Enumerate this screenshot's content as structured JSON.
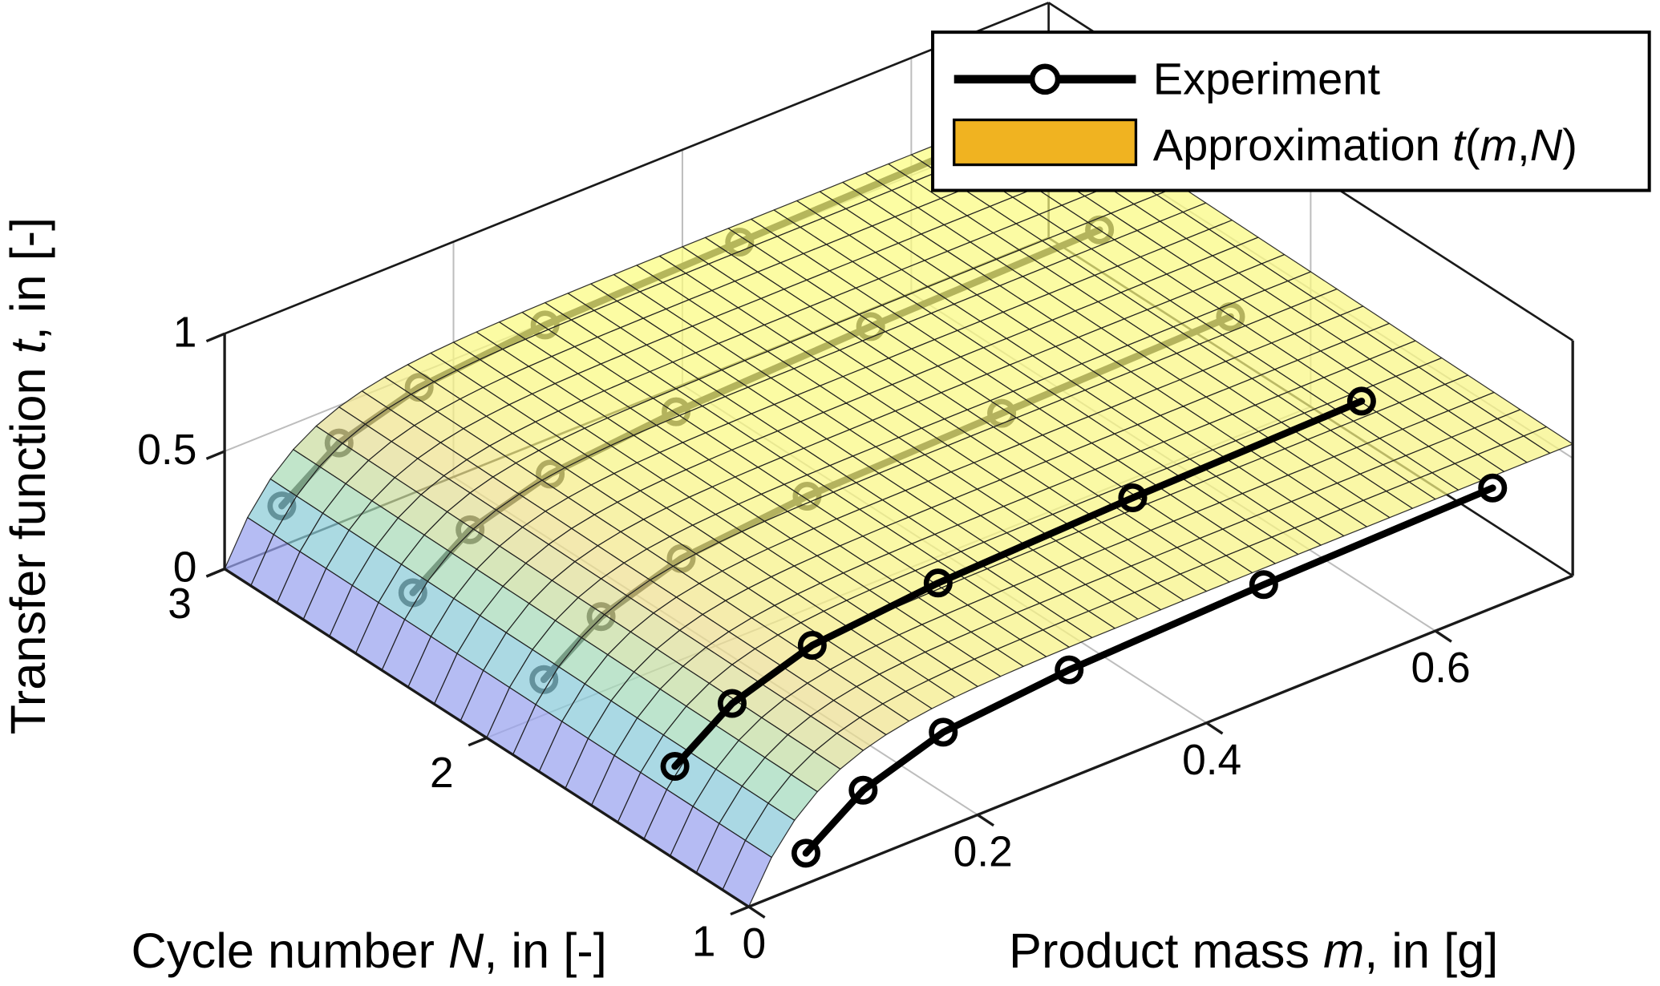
{
  "figure": {
    "background": "#ffffff"
  },
  "chart_data": {
    "type": "surface3d",
    "title": "",
    "axes": {
      "x": {
        "label": "Product mass m, in [g]",
        "label_runs": [
          {
            "text": "Product mass "
          },
          {
            "text": "m",
            "italic": true
          },
          {
            "text": ", in [g]"
          }
        ],
        "ticks": [
          0,
          0.2,
          0.4,
          0.6
        ],
        "tick_labels": [
          "0",
          "0.2",
          "0.4",
          "0.6"
        ],
        "range": [
          0,
          0.72
        ]
      },
      "y": {
        "label": "Cycle number N, in [-]",
        "label_runs": [
          {
            "text": "Cycle number "
          },
          {
            "text": "N",
            "italic": true
          },
          {
            "text": ", in [-]"
          }
        ],
        "ticks": [
          1,
          2,
          3
        ],
        "tick_labels": [
          "1",
          "2",
          "3"
        ],
        "range": [
          1,
          3
        ]
      },
      "z": {
        "label": "Transfer function t, in [-]",
        "label_runs": [
          {
            "text": "Transfer function "
          },
          {
            "text": "t",
            "italic": true
          },
          {
            "text": ", in [-]"
          }
        ],
        "ticks": [
          0,
          0.5,
          1
        ],
        "tick_labels": [
          "0",
          "0.5",
          "1"
        ],
        "range": [
          0,
          1
        ]
      },
      "grid": true
    },
    "legend": {
      "position": "top-right",
      "entries": [
        {
          "label": "Experiment",
          "type": "line-with-circle-marker",
          "color": "#000000"
        },
        {
          "label": "Approximation t(m,N)",
          "label_runs": [
            {
              "text": "Approximation "
            },
            {
              "text": "t",
              "italic": true
            },
            {
              "text": "("
            },
            {
              "text": "m",
              "italic": true
            },
            {
              "text": ","
            },
            {
              "text": "N",
              "italic": true
            },
            {
              "text": ")"
            }
          ],
          "type": "filled-patch",
          "swatch_color": "#F0B321"
        }
      ]
    },
    "surface": {
      "name": "Approximation t(m,N)",
      "description": "Fitted surface: steep rise from t=0 at m=0 to a plateau near t=0.5-0.55, nearly independent of N",
      "t_max": 0.56,
      "m_scale": 0.055,
      "n_slope": 0.025,
      "t_color_max": 0.59,
      "grid_m": 36,
      "grid_n": 20,
      "face_alpha": 0.72,
      "mesh_color": "#1c1c1c",
      "white_mix": 0.45,
      "colormap_stops": [
        [
          62,
          38,
          168
        ],
        [
          70,
          87,
          227
        ],
        [
          32,
          140,
          205
        ],
        [
          53,
          183,
          161
        ],
        [
          134,
          193,
          91
        ],
        [
          223,
          195,
          55
        ],
        [
          249,
          251,
          20
        ]
      ]
    },
    "series": [
      {
        "name": "Experiment N=1",
        "N": 1,
        "m": [
          0.05,
          0.1,
          0.17,
          0.28,
          0.45,
          0.65
        ],
        "t": [
          0.13,
          0.3,
          0.41,
          0.46,
          0.49,
          0.51
        ]
      },
      {
        "name": "Experiment N=1.5",
        "N": 1.5,
        "m": [
          0.05,
          0.1,
          0.17,
          0.28,
          0.45,
          0.65
        ],
        "t": [
          0.14,
          0.31,
          0.42,
          0.47,
          0.5,
          0.52
        ]
      },
      {
        "name": "Experiment N=2",
        "N": 2,
        "m": [
          0.05,
          0.1,
          0.17,
          0.28,
          0.45,
          0.65
        ],
        "t": [
          0.15,
          0.32,
          0.43,
          0.48,
          0.5,
          0.52
        ]
      },
      {
        "name": "Experiment N=2.5",
        "N": 2.5,
        "m": [
          0.05,
          0.1,
          0.17,
          0.28,
          0.45,
          0.65
        ],
        "t": [
          0.16,
          0.33,
          0.43,
          0.48,
          0.51,
          0.53
        ]
      },
      {
        "name": "Experiment N=3",
        "N": 3,
        "m": [
          0.05,
          0.1,
          0.17,
          0.28,
          0.45,
          0.65
        ],
        "t": [
          0.17,
          0.34,
          0.44,
          0.49,
          0.51,
          0.53
        ]
      }
    ],
    "colors": {
      "experiment": "#000000",
      "axis": "#1a1a1a",
      "grid": "#bdbdbd",
      "background": "#ffffff"
    }
  }
}
